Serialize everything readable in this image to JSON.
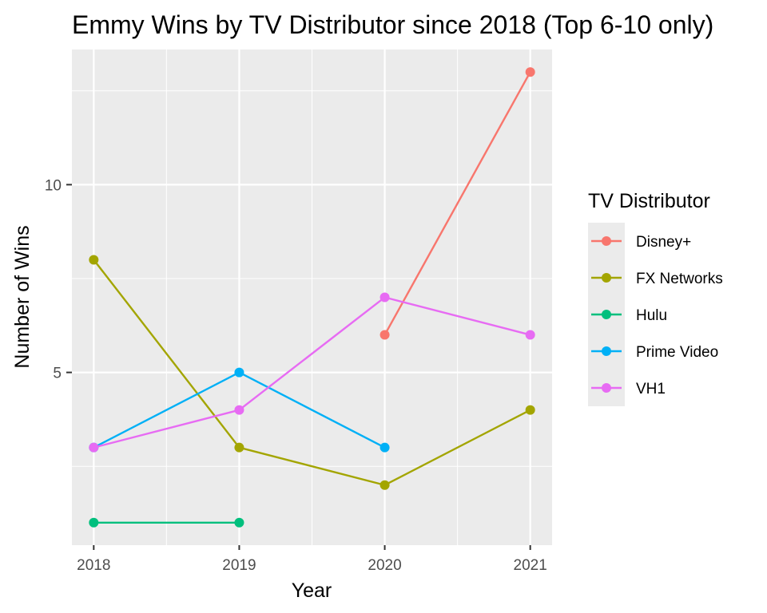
{
  "chart_data": {
    "type": "line",
    "title": "Emmy Wins by TV Distributor since 2018 (Top 6-10 only)",
    "xlabel": "Year",
    "ylabel": "Number of Wins",
    "x": [
      2018,
      2019,
      2020,
      2021
    ],
    "xlim": [
      2017.85,
      2021.15
    ],
    "ylim": [
      0.4,
      13.6
    ],
    "yticks": [
      5,
      10
    ],
    "grid": true,
    "legend": {
      "title": "TV Distributor",
      "placement": "right"
    },
    "series": [
      {
        "name": "Disney+",
        "color": "#F8766D",
        "x": [
          2020,
          2021
        ],
        "values": [
          6,
          13
        ]
      },
      {
        "name": "FX Networks",
        "color": "#A3A500",
        "x": [
          2018,
          2019,
          2020,
          2021
        ],
        "values": [
          8,
          3,
          2,
          4
        ]
      },
      {
        "name": "Hulu",
        "color": "#00BF7D",
        "x": [
          2018,
          2019
        ],
        "values": [
          1,
          1
        ]
      },
      {
        "name": "Prime Video",
        "color": "#00B0F6",
        "x": [
          2018,
          2019,
          2020
        ],
        "values": [
          3,
          5,
          3
        ]
      },
      {
        "name": "VH1",
        "color": "#E76BF3",
        "x": [
          2018,
          2019,
          2020,
          2021
        ],
        "values": [
          3,
          4,
          7,
          6
        ]
      }
    ]
  }
}
